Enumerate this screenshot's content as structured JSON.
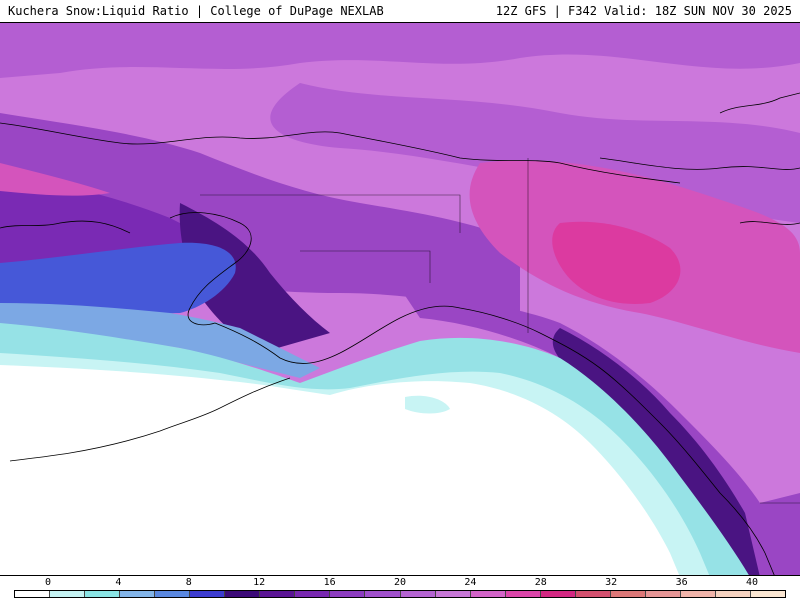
{
  "header": {
    "title": "Kuchera Snow:Liquid Ratio | College of DuPage NEXLAB",
    "valid": "12Z GFS | F342 Valid: 18Z SUN NOV 30 2025"
  },
  "colorbar": {
    "tick_labels": [
      "0",
      "4",
      "8",
      "12",
      "16",
      "20",
      "24",
      "28",
      "32",
      "36",
      "40"
    ],
    "colors": [
      "#ffffff",
      "#c4f2f2",
      "#8ae4e4",
      "#82b4e8",
      "#5a88e0",
      "#3c3cd0",
      "#3c0a78",
      "#5a1494",
      "#7828b0",
      "#8c3cc0",
      "#a050cc",
      "#b464d2",
      "#c878d8",
      "#d264c8",
      "#dc46aa",
      "#d22882",
      "#d2506e",
      "#dc7878",
      "#e69696",
      "#f0b4aa",
      "#f5d2c0",
      "#fae6d2"
    ]
  },
  "palette": {
    "deep_purple": "#4a1482",
    "purple": "#7a2ab4",
    "violet": "#9a46c4",
    "orchid": "#b45ed2",
    "light_orchid": "#cc78dc",
    "magenta": "#d454bc",
    "pink": "#dc3aa0",
    "blue": "#4658d8",
    "sky": "#7ca8e4",
    "aqua": "#96e2e6",
    "pale_aqua": "#c8f4f4",
    "coast": "#000000"
  }
}
